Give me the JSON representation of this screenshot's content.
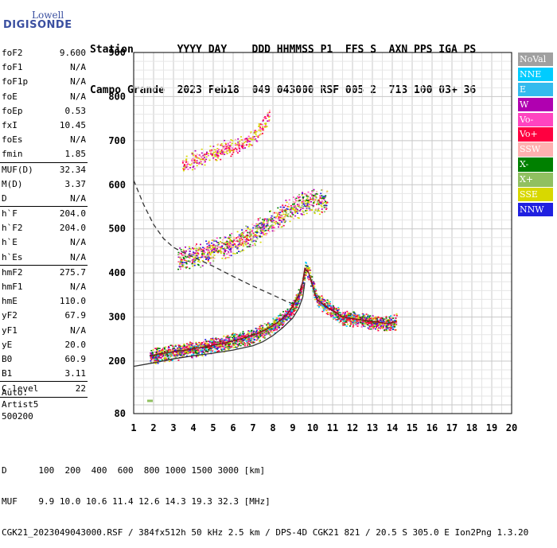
{
  "logo": {
    "line1": "Lowell",
    "line2": "DIGISONDE"
  },
  "header": {
    "row1": "Station       YYYY DAY    DDD HHMMSS P1  FFS S  AXN PPS IGA PS",
    "row2": "Campo Grande  2023 Feb18  049 043000 RSF 005 2  713 100 03+ 36"
  },
  "params": [
    {
      "group": [
        {
          "label": "foF2",
          "value": "9.600"
        },
        {
          "label": "foF1",
          "value": "N/A"
        },
        {
          "label": "foF1p",
          "value": "N/A"
        },
        {
          "label": "foE",
          "value": "N/A"
        },
        {
          "label": "foEp",
          "value": "0.53"
        },
        {
          "label": "fxI",
          "value": "10.45"
        },
        {
          "label": "foEs",
          "value": "N/A"
        },
        {
          "label": "fmin",
          "value": "1.85"
        }
      ]
    },
    {
      "group": [
        {
          "label": "MUF(D)",
          "value": "32.34"
        },
        {
          "label": "M(D)",
          "value": "3.37"
        },
        {
          "label": "D",
          "value": "N/A"
        }
      ]
    },
    {
      "group": [
        {
          "label": "h`F",
          "value": "204.0"
        },
        {
          "label": "h`F2",
          "value": "204.0"
        },
        {
          "label": "h`E",
          "value": "N/A"
        },
        {
          "label": "h`Es",
          "value": "N/A"
        }
      ]
    },
    {
      "group": [
        {
          "label": "hmF2",
          "value": "275.7"
        },
        {
          "label": "hmF1",
          "value": "N/A"
        },
        {
          "label": "hmE",
          "value": "110.0"
        },
        {
          "label": "yF2",
          "value": "67.9"
        },
        {
          "label": "yF1",
          "value": "N/A"
        },
        {
          "label": "yE",
          "value": "20.0"
        },
        {
          "label": "B0",
          "value": "60.9"
        },
        {
          "label": "B1",
          "value": "3.11"
        }
      ]
    },
    {
      "group": [
        {
          "label": "C-level",
          "value": "22"
        }
      ]
    }
  ],
  "auto": [
    "Auto:",
    "Artist5",
    "500200"
  ],
  "legend": [
    {
      "label": "NoVal",
      "color": "#a0a0a0"
    },
    {
      "label": "NNE",
      "color": "#00ccff"
    },
    {
      "label": "E",
      "color": "#33bbee"
    },
    {
      "label": "W",
      "color": "#b000b0"
    },
    {
      "label": "Vo-",
      "color": "#ff44c0"
    },
    {
      "label": "Vo+",
      "color": "#ff0040"
    },
    {
      "label": "SSW",
      "color": "#ffb0b0"
    },
    {
      "label": "X-",
      "color": "#008000"
    },
    {
      "label": "X+",
      "color": "#90c060"
    },
    {
      "label": "SSE",
      "color": "#d8d800"
    },
    {
      "label": "NNW",
      "color": "#2020e0"
    }
  ],
  "footer": {
    "row1": "D      100  200  400  600  800 1000 1500 3000 [km]",
    "row2": "MUF    9.9 10.0 10.6 11.4 12.6 14.3 19.3 32.3 [MHz]",
    "row3": "CGK21_2023049043000.RSF / 384fx512h 50 kHz 2.5 km / DPS-4D CGK21 821 / 20.5 S 305.0 E Ion2Png 1.3.20"
  },
  "chart_data": {
    "type": "scatter",
    "title": "",
    "xlabel": "",
    "ylabel": "",
    "xlim": [
      1,
      20
    ],
    "ylim": [
      80,
      900
    ],
    "x_ticks": [
      1,
      2,
      3,
      4,
      5,
      6,
      7,
      8,
      9,
      10,
      11,
      12,
      13,
      14,
      15,
      16,
      17,
      18,
      19,
      20
    ],
    "y_ticks": [
      80,
      200,
      300,
      400,
      500,
      600,
      700,
      800,
      900
    ],
    "grid": true,
    "series": [
      {
        "kind": "echo-trace",
        "points": [
          [
            1.8,
            212
          ],
          [
            2.5,
            218
          ],
          [
            3.5,
            224
          ],
          [
            4.5,
            232
          ],
          [
            5.5,
            240
          ],
          [
            6.5,
            252
          ],
          [
            7.2,
            262
          ],
          [
            7.8,
            275
          ],
          [
            8.3,
            290
          ],
          [
            8.7,
            305
          ],
          [
            9.0,
            325
          ],
          [
            9.3,
            350
          ],
          [
            9.5,
            380
          ],
          [
            9.6,
            410
          ],
          [
            9.8,
            400
          ],
          [
            10.2,
            340
          ],
          [
            10.8,
            320
          ],
          [
            11.5,
            300
          ],
          [
            12.2,
            295
          ],
          [
            13.0,
            290
          ],
          [
            13.8,
            285
          ],
          [
            14.2,
            290
          ]
        ]
      },
      {
        "kind": "second-hop",
        "points": [
          [
            3.2,
            430
          ],
          [
            4.0,
            440
          ],
          [
            5.0,
            452
          ],
          [
            6.0,
            468
          ],
          [
            7.0,
            490
          ],
          [
            8.0,
            520
          ],
          [
            8.8,
            545
          ],
          [
            9.5,
            560
          ],
          [
            10.2,
            565
          ],
          [
            10.7,
            560
          ]
        ]
      },
      {
        "kind": "third-hop",
        "points": [
          [
            3.4,
            648
          ],
          [
            4.2,
            660
          ],
          [
            5.0,
            672
          ],
          [
            6.0,
            688
          ],
          [
            6.8,
            705
          ],
          [
            7.3,
            725
          ],
          [
            7.8,
            760
          ]
        ]
      },
      {
        "kind": "profile-solid",
        "points": [
          [
            1.0,
            188
          ],
          [
            2.0,
            196
          ],
          [
            3.0,
            205
          ],
          [
            4.0,
            212
          ],
          [
            5.0,
            218
          ],
          [
            6.0,
            225
          ],
          [
            7.0,
            235
          ],
          [
            7.5,
            244
          ],
          [
            8.0,
            258
          ],
          [
            8.5,
            276
          ],
          [
            9.0,
            298
          ],
          [
            9.3,
            320
          ],
          [
            9.5,
            345
          ],
          [
            9.6,
            378
          ]
        ]
      },
      {
        "kind": "profile-dashed",
        "points": [
          [
            1.0,
            610
          ],
          [
            1.5,
            555
          ],
          [
            2.0,
            510
          ],
          [
            2.5,
            478
          ],
          [
            3.0,
            458
          ],
          [
            3.5,
            446
          ],
          [
            4.0,
            436
          ],
          [
            5.0,
            415
          ],
          [
            6.0,
            392
          ],
          [
            7.0,
            370
          ],
          [
            8.0,
            350
          ],
          [
            8.7,
            335
          ],
          [
            9.0,
            330
          ]
        ]
      },
      {
        "kind": "sporadic",
        "points": [
          [
            1.8,
            110
          ]
        ]
      }
    ]
  }
}
